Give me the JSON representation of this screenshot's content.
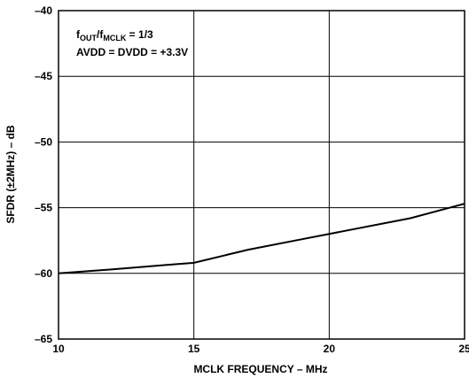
{
  "chart_data": {
    "type": "line",
    "title": "",
    "xlabel": "MCLK FREQUENCY – MHz",
    "ylabel": "SFDR (±2MHz) – dB",
    "xlim": [
      10,
      25
    ],
    "ylim": [
      -65,
      -40
    ],
    "x_ticks": [
      "10",
      "15",
      "20",
      "25"
    ],
    "y_ticks": [
      "–40",
      "–45",
      "–50",
      "–55",
      "–60",
      "–65"
    ],
    "grid": true,
    "annotations": {
      "line1_prefix": "f",
      "line1_sub1": "OUT",
      "line1_mid": "/f",
      "line1_sub2": "MCLK",
      "line1_suffix": " = 1/3",
      "line2": "AVDD = DVDD = +3.3V"
    },
    "series": [
      {
        "x": [
          10,
          12,
          14,
          15,
          17,
          19,
          21,
          23,
          25
        ],
        "y": [
          -60.0,
          -59.7,
          -59.35,
          -59.2,
          -58.2,
          -57.4,
          -56.6,
          -55.8,
          -54.7
        ]
      }
    ]
  }
}
